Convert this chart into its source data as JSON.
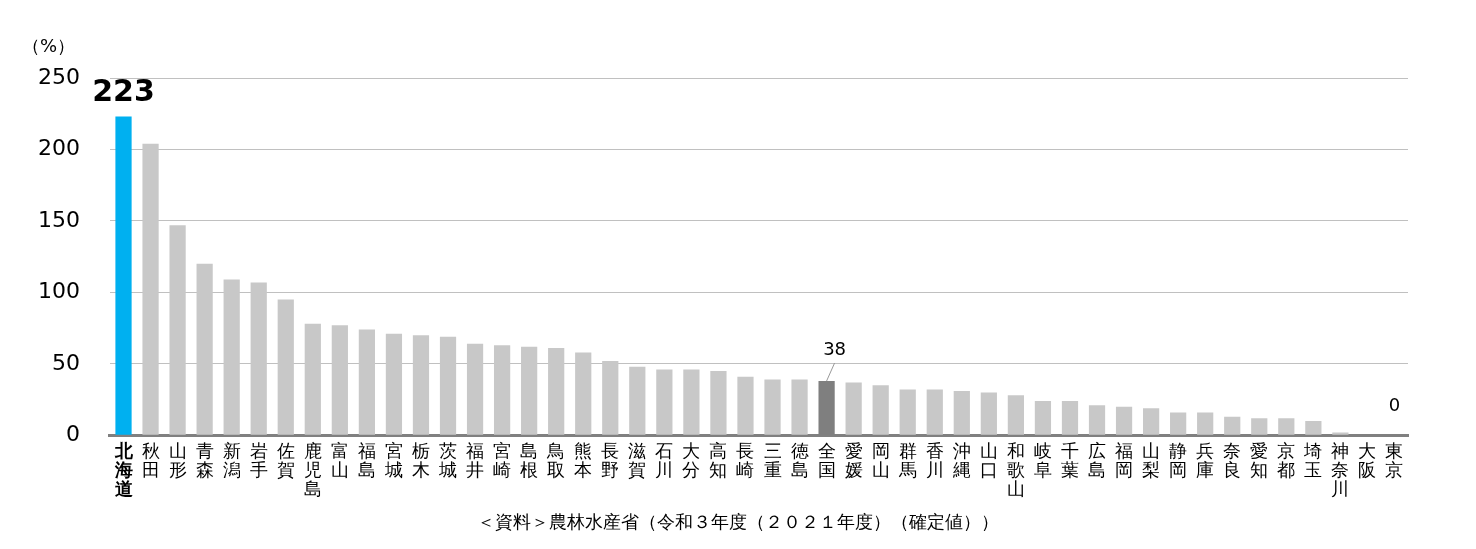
{
  "chart_data": {
    "type": "bar",
    "ylabel": "（%）",
    "categories": [
      "北海道",
      "秋田",
      "山形",
      "青森",
      "新潟",
      "岩手",
      "佐賀",
      "鹿児島",
      "富山",
      "福島",
      "宮城",
      "栃木",
      "茨城",
      "福井",
      "宮崎",
      "島根",
      "鳥取",
      "熊本",
      "長野",
      "滋賀",
      "石川",
      "大分",
      "高知",
      "長崎",
      "三重",
      "徳島",
      "全国",
      "愛媛",
      "岡山",
      "群馬",
      "香川",
      "沖縄",
      "山口",
      "和歌山",
      "岐阜",
      "千葉",
      "広島",
      "福岡",
      "山梨",
      "静岡",
      "兵庫",
      "奈良",
      "愛知",
      "京都",
      "埼玉",
      "神奈川",
      "大阪",
      "東京"
    ],
    "values": [
      223,
      204,
      147,
      120,
      109,
      107,
      95,
      78,
      77,
      74,
      71,
      70,
      69,
      64,
      63,
      62,
      61,
      58,
      52,
      48,
      46,
      46,
      45,
      41,
      39,
      39,
      38,
      37,
      35,
      32,
      32,
      31,
      30,
      28,
      24,
      24,
      21,
      20,
      19,
      16,
      16,
      13,
      12,
      12,
      10,
      2,
      null,
      0
    ],
    "colors": [
      "#00b0f0",
      "#c8c8c8",
      "#c8c8c8",
      "#c8c8c8",
      "#c8c8c8",
      "#c8c8c8",
      "#c8c8c8",
      "#c8c8c8",
      "#c8c8c8",
      "#c8c8c8",
      "#c8c8c8",
      "#c8c8c8",
      "#c8c8c8",
      "#c8c8c8",
      "#c8c8c8",
      "#c8c8c8",
      "#c8c8c8",
      "#c8c8c8",
      "#c8c8c8",
      "#c8c8c8",
      "#c8c8c8",
      "#c8c8c8",
      "#c8c8c8",
      "#c8c8c8",
      "#c8c8c8",
      "#c8c8c8",
      "#7f7f7f",
      "#c8c8c8",
      "#c8c8c8",
      "#c8c8c8",
      "#c8c8c8",
      "#c8c8c8",
      "#c8c8c8",
      "#c8c8c8",
      "#c8c8c8",
      "#c8c8c8",
      "#c8c8c8",
      "#c8c8c8",
      "#c8c8c8",
      "#c8c8c8",
      "#c8c8c8",
      "#c8c8c8",
      "#c8c8c8",
      "#c8c8c8",
      "#c8c8c8",
      "#c8c8c8",
      "#c8c8c8",
      "#c8c8c8"
    ],
    "value_labels": [
      "223",
      null,
      null,
      null,
      null,
      null,
      null,
      null,
      null,
      null,
      null,
      null,
      null,
      null,
      null,
      null,
      null,
      null,
      null,
      null,
      null,
      null,
      null,
      null,
      null,
      null,
      "38",
      null,
      null,
      null,
      null,
      null,
      null,
      null,
      null,
      null,
      null,
      null,
      null,
      null,
      null,
      null,
      null,
      null,
      null,
      null,
      null,
      "0"
    ],
    "ylim": [
      0,
      250
    ],
    "yticks": [
      0,
      50,
      100,
      150,
      200,
      250
    ],
    "grid": "y",
    "legend": false,
    "annotations": [
      "＜資料＞農林水産省（令和３年度（２０２１年度）（確定値））"
    ]
  }
}
